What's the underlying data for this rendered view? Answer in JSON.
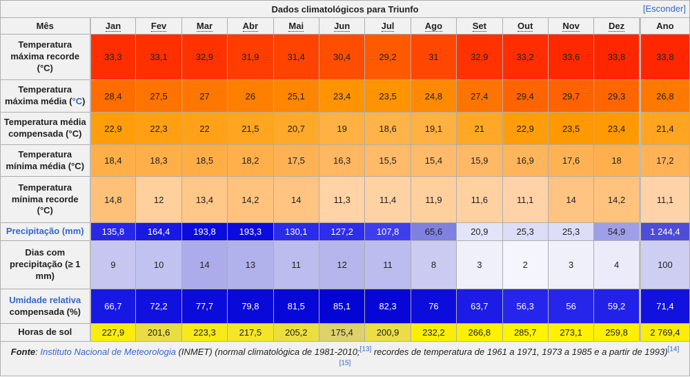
{
  "colors": {
    "link": "#3366CC",
    "header_bg": "#F1F1F1",
    "border": "#ADADAD",
    "dark_text": "#202122",
    "light_text": "#FFFFFF"
  },
  "table": {
    "title": "Dados climatológicos para Triunfo",
    "hide_label": "[Esconder]",
    "month_header": "Mês",
    "columns": [
      "Jan",
      "Fev",
      "Mar",
      "Abr",
      "Mai",
      "Jun",
      "Jul",
      "Ago",
      "Set",
      "Out",
      "Nov",
      "Dez"
    ],
    "year_header": "Ano",
    "rows": [
      {
        "label": [
          {
            "t": "Temperatura máxima recorde (°C)",
            "link": false
          }
        ],
        "cells": [
          {
            "v": "33,3",
            "bg": "#FF2E00",
            "fg": "#202122"
          },
          {
            "v": "33,1",
            "bg": "#FF3000",
            "fg": "#202122"
          },
          {
            "v": "32,9",
            "bg": "#FF3200",
            "fg": "#202122"
          },
          {
            "v": "31,9",
            "bg": "#FF3D00",
            "fg": "#202122"
          },
          {
            "v": "31,4",
            "bg": "#FF4300",
            "fg": "#202122"
          },
          {
            "v": "30,4",
            "bg": "#FF4E00",
            "fg": "#202122"
          },
          {
            "v": "29,2",
            "bg": "#FF5A00",
            "fg": "#202122"
          },
          {
            "v": "31",
            "bg": "#FF4700",
            "fg": "#202122"
          },
          {
            "v": "32,9",
            "bg": "#FF3200",
            "fg": "#202122"
          },
          {
            "v": "33,2",
            "bg": "#FF2D00",
            "fg": "#202122"
          },
          {
            "v": "33,6",
            "bg": "#FF2900",
            "fg": "#202122"
          },
          {
            "v": "33,8",
            "bg": "#FF2700",
            "fg": "#202122"
          },
          {
            "v": "33,8",
            "bg": "#FF2700",
            "fg": "#202122"
          }
        ]
      },
      {
        "label": [
          {
            "t": "Temperatura máxima média (",
            "link": false
          },
          {
            "t": "°C",
            "link": true
          },
          {
            "t": ")",
            "link": false
          }
        ],
        "cells": [
          {
            "v": "28,4",
            "bg": "#FF6C00",
            "fg": "#202122"
          },
          {
            "v": "27,5",
            "bg": "#FF7300",
            "fg": "#202122"
          },
          {
            "v": "27",
            "bg": "#FF7700",
            "fg": "#202122"
          },
          {
            "v": "26",
            "bg": "#FF7F00",
            "fg": "#202122"
          },
          {
            "v": "25,1",
            "bg": "#FF8600",
            "fg": "#202122"
          },
          {
            "v": "23,4",
            "bg": "#FF9400",
            "fg": "#202122"
          },
          {
            "v": "23,5",
            "bg": "#FF9300",
            "fg": "#202122"
          },
          {
            "v": "24,8",
            "bg": "#FF8900",
            "fg": "#202122"
          },
          {
            "v": "27,4",
            "bg": "#FF7400",
            "fg": "#202122"
          },
          {
            "v": "29,4",
            "bg": "#FF6400",
            "fg": "#202122"
          },
          {
            "v": "29,7",
            "bg": "#FF6200",
            "fg": "#202122"
          },
          {
            "v": "29,3",
            "bg": "#FF6500",
            "fg": "#202122"
          },
          {
            "v": "26,8",
            "bg": "#FF7900",
            "fg": "#202122"
          }
        ]
      },
      {
        "label": [
          {
            "t": "Temperatura média compensada (°C)",
            "link": false
          }
        ],
        "cells": [
          {
            "v": "22,9",
            "bg": "#FF9D0A",
            "fg": "#202122"
          },
          {
            "v": "22,3",
            "bg": "#FFA013",
            "fg": "#202122"
          },
          {
            "v": "22",
            "bg": "#FFA218",
            "fg": "#202122"
          },
          {
            "v": "21,5",
            "bg": "#FFA520",
            "fg": "#202122"
          },
          {
            "v": "20,7",
            "bg": "#FFA92B",
            "fg": "#202122"
          },
          {
            "v": "19",
            "bg": "#FFB143",
            "fg": "#202122"
          },
          {
            "v": "18,6",
            "bg": "#FFB349",
            "fg": "#202122"
          },
          {
            "v": "19,1",
            "bg": "#FFB142",
            "fg": "#202122"
          },
          {
            "v": "21",
            "bg": "#FFA727",
            "fg": "#202122"
          },
          {
            "v": "22,9",
            "bg": "#FF9D0A",
            "fg": "#202122"
          },
          {
            "v": "23,5",
            "bg": "#FF9900",
            "fg": "#202122"
          },
          {
            "v": "23,4",
            "bg": "#FF9A04",
            "fg": "#202122"
          },
          {
            "v": "21,4",
            "bg": "#FFA521",
            "fg": "#202122"
          }
        ]
      },
      {
        "label": [
          {
            "t": "Temperatura mínima média (°C)",
            "link": false
          }
        ],
        "cells": [
          {
            "v": "18,4",
            "bg": "#FFAF47",
            "fg": "#202122"
          },
          {
            "v": "18,3",
            "bg": "#FFAF48",
            "fg": "#202122"
          },
          {
            "v": "18,5",
            "bg": "#FFAE46",
            "fg": "#202122"
          },
          {
            "v": "18,2",
            "bg": "#FFB04A",
            "fg": "#202122"
          },
          {
            "v": "17,5",
            "bg": "#FFB254",
            "fg": "#202122"
          },
          {
            "v": "16,3",
            "bg": "#FFB762",
            "fg": "#202122"
          },
          {
            "v": "15,5",
            "bg": "#FFBA6A",
            "fg": "#202122"
          },
          {
            "v": "15,4",
            "bg": "#FFBB6B",
            "fg": "#202122"
          },
          {
            "v": "15,9",
            "bg": "#FFB966",
            "fg": "#202122"
          },
          {
            "v": "16,9",
            "bg": "#FFB55B",
            "fg": "#202122"
          },
          {
            "v": "17,6",
            "bg": "#FFB253",
            "fg": "#202122"
          },
          {
            "v": "18",
            "bg": "#FFB04C",
            "fg": "#202122"
          },
          {
            "v": "17,2",
            "bg": "#FFB356",
            "fg": "#202122"
          }
        ]
      },
      {
        "label": [
          {
            "t": "Temperatura mínima recorde (°C)",
            "link": false
          }
        ],
        "cells": [
          {
            "v": "14,8",
            "bg": "#FFC078",
            "fg": "#202122"
          },
          {
            "v": "12",
            "bg": "#FFCF9C",
            "fg": "#202122"
          },
          {
            "v": "13,4",
            "bg": "#FFC788",
            "fg": "#202122"
          },
          {
            "v": "14,2",
            "bg": "#FFC37E",
            "fg": "#202122"
          },
          {
            "v": "14",
            "bg": "#FFC481",
            "fg": "#202122"
          },
          {
            "v": "11,3",
            "bg": "#FFD3A5",
            "fg": "#202122"
          },
          {
            "v": "11,4",
            "bg": "#FFD2A4",
            "fg": "#202122"
          },
          {
            "v": "11,9",
            "bg": "#FFD09E",
            "fg": "#202122"
          },
          {
            "v": "11,6",
            "bg": "#FFD1A1",
            "fg": "#202122"
          },
          {
            "v": "11,1",
            "bg": "#FFD3A7",
            "fg": "#202122"
          },
          {
            "v": "14",
            "bg": "#FFC481",
            "fg": "#202122"
          },
          {
            "v": "14,2",
            "bg": "#FFC37E",
            "fg": "#202122"
          },
          {
            "v": "11,1",
            "bg": "#FFD3A7",
            "fg": "#202122"
          }
        ]
      },
      {
        "label": [
          {
            "t": "Precipitação (mm)",
            "link": true
          }
        ],
        "cells": [
          {
            "v": "135,8",
            "bg": "#2727E9",
            "fg": "#FFFFFF"
          },
          {
            "v": "164,4",
            "bg": "#1919E3",
            "fg": "#FFFFFF"
          },
          {
            "v": "193,8",
            "bg": "#0B0BDD",
            "fg": "#FFFFFF"
          },
          {
            "v": "193,3",
            "bg": "#0B0BDD",
            "fg": "#FFFFFF"
          },
          {
            "v": "130,1",
            "bg": "#2B2BEA",
            "fg": "#FFFFFF"
          },
          {
            "v": "127,2",
            "bg": "#2D2DEB",
            "fg": "#FFFFFF"
          },
          {
            "v": "107,8",
            "bg": "#3E3EEE",
            "fg": "#FFFFFF"
          },
          {
            "v": "65,6",
            "bg": "#8080E0",
            "fg": "#202122"
          },
          {
            "v": "20,9",
            "bg": "#E3E3F9",
            "fg": "#202122"
          },
          {
            "v": "25,3",
            "bg": "#DDDDF7",
            "fg": "#202122"
          },
          {
            "v": "25,3",
            "bg": "#DDDDF7",
            "fg": "#202122"
          },
          {
            "v": "54,9",
            "bg": "#9F9FE7",
            "fg": "#202122"
          },
          {
            "v": "1 244,4",
            "bg": "#4D4DD7",
            "fg": "#FFFFFF"
          }
        ]
      },
      {
        "label": [
          {
            "t": "Dias com precipitação (≥ 1 mm)",
            "link": false
          }
        ],
        "cells": [
          {
            "v": "9",
            "bg": "#C6C6F1",
            "fg": "#202122"
          },
          {
            "v": "10",
            "bg": "#C2C2F0",
            "fg": "#202122"
          },
          {
            "v": "14",
            "bg": "#ACACEA",
            "fg": "#202122"
          },
          {
            "v": "13",
            "bg": "#B1B1EB",
            "fg": "#202122"
          },
          {
            "v": "11",
            "bg": "#BCBCEE",
            "fg": "#202122"
          },
          {
            "v": "12",
            "bg": "#B6B6EC",
            "fg": "#202122"
          },
          {
            "v": "11",
            "bg": "#BCBCEE",
            "fg": "#202122"
          },
          {
            "v": "8",
            "bg": "#CBCBF2",
            "fg": "#202122"
          },
          {
            "v": "3",
            "bg": "#F0F0FB",
            "fg": "#202122"
          },
          {
            "v": "2",
            "bg": "#F5F5FD",
            "fg": "#202122"
          },
          {
            "v": "3",
            "bg": "#F0F0FB",
            "fg": "#202122"
          },
          {
            "v": "4",
            "bg": "#EBEBFA",
            "fg": "#202122"
          },
          {
            "v": "100",
            "bg": "#CECEF3",
            "fg": "#202122"
          }
        ]
      },
      {
        "label": [
          {
            "t": "Umidade relativa",
            "link": true
          },
          {
            "t": " compensada (%)",
            "link": false
          }
        ],
        "cells": [
          {
            "v": "66,7",
            "bg": "#1818E4",
            "fg": "#FFFFFF"
          },
          {
            "v": "72,2",
            "bg": "#1111DF",
            "fg": "#FFFFFF"
          },
          {
            "v": "77,7",
            "bg": "#0B0BDB",
            "fg": "#FFFFFF"
          },
          {
            "v": "79,8",
            "bg": "#0909D9",
            "fg": "#FFFFFF"
          },
          {
            "v": "81,5",
            "bg": "#0707D7",
            "fg": "#FFFFFF"
          },
          {
            "v": "85,1",
            "bg": "#0404D4",
            "fg": "#FFFFFF"
          },
          {
            "v": "82,3",
            "bg": "#0606D6",
            "fg": "#FFFFFF"
          },
          {
            "v": "76",
            "bg": "#0C0CDC",
            "fg": "#FFFFFF"
          },
          {
            "v": "63,7",
            "bg": "#1C1CE6",
            "fg": "#FFFFFF"
          },
          {
            "v": "56,3",
            "bg": "#2525EB",
            "fg": "#FFFFFF"
          },
          {
            "v": "56",
            "bg": "#2626EB",
            "fg": "#FFFFFF"
          },
          {
            "v": "59,2",
            "bg": "#2121E9",
            "fg": "#FFFFFF"
          },
          {
            "v": "71,4",
            "bg": "#1212DF",
            "fg": "#FFFFFF"
          }
        ]
      },
      {
        "label": [
          {
            "t": "Horas de sol",
            "link": false
          }
        ],
        "cells": [
          {
            "v": "227,9",
            "bg": "#FAEC0E",
            "fg": "#202122"
          },
          {
            "v": "201,6",
            "bg": "#EADD44",
            "fg": "#202122"
          },
          {
            "v": "223,3",
            "bg": "#F7EA19",
            "fg": "#202122"
          },
          {
            "v": "217,5",
            "bg": "#F4E626",
            "fg": "#202122"
          },
          {
            "v": "205,2",
            "bg": "#ECDF3D",
            "fg": "#202122"
          },
          {
            "v": "175,4",
            "bg": "#DDD16A",
            "fg": "#202122"
          },
          {
            "v": "200,9",
            "bg": "#EADD46",
            "fg": "#202122"
          },
          {
            "v": "232,2",
            "bg": "#FBEE06",
            "fg": "#202122"
          },
          {
            "v": "266,8",
            "bg": "#FDF000",
            "fg": "#202122"
          },
          {
            "v": "285,7",
            "bg": "#FFF400",
            "fg": "#202122"
          },
          {
            "v": "273,1",
            "bg": "#FEF200",
            "fg": "#202122"
          },
          {
            "v": "259,8",
            "bg": "#FDF000",
            "fg": "#202122"
          },
          {
            "v": "2 769,4",
            "bg": "#FBED0B",
            "fg": "#202122"
          }
        ]
      }
    ],
    "source": {
      "prefix": "Fonte",
      "sep": ": ",
      "link": "Instituto Nacional de Meteorologia",
      "mid1": " (INMET) (normal climatológica de 1981-2010;",
      "ref1": "[13]",
      "mid2": " recordes de temperatura de 1961 a 1971, 1973 a 1985 e a partir de 1993)",
      "ref2": "[14]",
      "ref3": "[15]"
    }
  }
}
